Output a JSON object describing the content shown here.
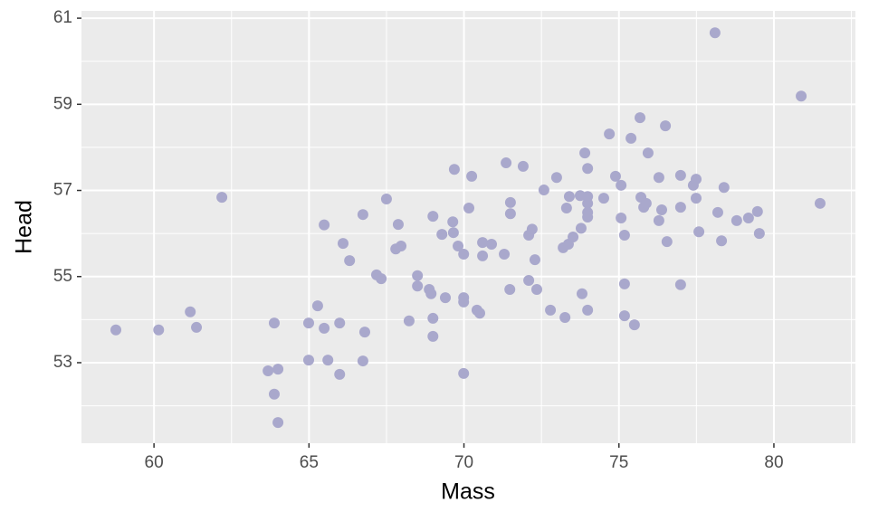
{
  "chart_data": {
    "type": "scatter",
    "x_label": "Mass",
    "y_label": "Head",
    "color": "#a9a8cc",
    "grid": true,
    "xlim": [
      57.66,
      82.63
    ],
    "ylim": [
      51.13,
      61.17
    ],
    "xticks": [
      60,
      65,
      70,
      75,
      80
    ],
    "yticks": [
      53,
      55,
      57,
      59,
      61
    ],
    "x": [
      58.77,
      60.15,
      61.17,
      61.37,
      62.19,
      63.88,
      63.68,
      64.0,
      63.88,
      64.0,
      64.99,
      65.28,
      65.49,
      65.49,
      64.99,
      65.61,
      65.99,
      65.99,
      66.1,
      66.31,
      66.74,
      66.8,
      66.74,
      67.18,
      67.33,
      67.5,
      67.8,
      67.97,
      67.88,
      68.23,
      68.5,
      68.5,
      68.88,
      68.94,
      69.0,
      69.0,
      69.0,
      69.29,
      69.4,
      69.64,
      69.66,
      69.69,
      69.81,
      69.99,
      69.99,
      69.99,
      69.99,
      70.16,
      70.25,
      70.42,
      70.51,
      70.6,
      70.6,
      70.89,
      71.3,
      71.36,
      71.48,
      71.5,
      71.5,
      71.91,
      72.09,
      72.09,
      72.2,
      72.29,
      72.35,
      72.58,
      72.79,
      72.99,
      73.2,
      73.26,
      73.31,
      73.37,
      73.4,
      73.52,
      73.75,
      73.78,
      73.81,
      73.9,
      73.99,
      73.99,
      73.99,
      73.99,
      73.99,
      73.99,
      74.51,
      74.69,
      74.89,
      75.07,
      75.07,
      75.18,
      75.18,
      75.18,
      75.39,
      75.5,
      75.68,
      75.71,
      75.8,
      75.88,
      75.94,
      76.29,
      76.29,
      76.38,
      76.5,
      76.55,
      76.99,
      76.99,
      76.99,
      77.4,
      77.49,
      77.49,
      77.58,
      78.1,
      78.19,
      78.31,
      78.39,
      78.8,
      79.18,
      79.47,
      79.53,
      80.88,
      81.49
    ],
    "values": [
      53.76,
      53.76,
      54.18,
      53.82,
      56.84,
      53.92,
      52.81,
      52.85,
      52.27,
      51.61,
      53.92,
      54.32,
      56.2,
      53.8,
      53.06,
      53.06,
      53.92,
      52.73,
      55.77,
      55.37,
      56.44,
      53.71,
      53.04,
      55.04,
      54.95,
      56.8,
      55.64,
      55.71,
      56.21,
      53.97,
      55.02,
      54.78,
      54.7,
      54.6,
      54.03,
      53.61,
      56.4,
      55.98,
      54.51,
      56.27,
      56.02,
      57.49,
      55.71,
      54.51,
      54.41,
      55.52,
      52.75,
      56.59,
      57.33,
      54.22,
      54.15,
      55.79,
      55.48,
      55.75,
      55.52,
      57.64,
      54.7,
      56.72,
      56.46,
      57.56,
      55.96,
      54.91,
      56.1,
      55.39,
      54.7,
      57.01,
      54.22,
      57.3,
      55.67,
      54.05,
      56.59,
      55.75,
      56.86,
      55.92,
      56.88,
      56.12,
      54.6,
      57.87,
      56.86,
      57.51,
      56.7,
      56.49,
      56.38,
      54.22,
      56.82,
      58.31,
      57.33,
      57.12,
      56.36,
      55.96,
      54.83,
      54.09,
      58.21,
      53.88,
      58.69,
      56.84,
      56.61,
      56.7,
      57.87,
      57.3,
      56.3,
      56.55,
      58.5,
      55.81,
      57.35,
      56.61,
      54.81,
      57.12,
      57.26,
      56.82,
      56.04,
      60.66,
      56.49,
      55.83,
      57.07,
      56.3,
      56.36,
      56.51,
      56.0,
      59.19,
      56.7
    ]
  }
}
